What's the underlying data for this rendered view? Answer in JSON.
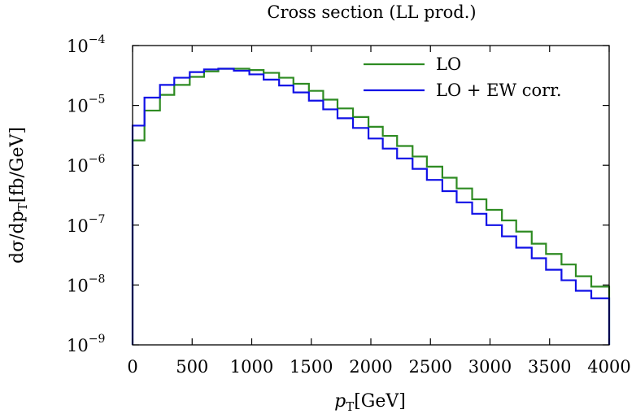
{
  "chart_data": {
    "type": "line",
    "title": "Cross section (LL prod.)",
    "xlabel": {
      "main": "p",
      "sub": "T",
      "unit": "[GeV]"
    },
    "ylabel": {
      "prefix": "dσ/dp",
      "sub": "T",
      "unit": "[fb/GeV]"
    },
    "xlim": [
      0,
      4000
    ],
    "ylim": [
      1e-09,
      0.0001
    ],
    "yscale": "log",
    "grid": false,
    "legend_position": "top-right",
    "x_ticks": [
      0,
      500,
      1000,
      1500,
      2000,
      2500,
      3000,
      3500,
      4000
    ],
    "x_tick_labels": [
      "0",
      "500",
      "1000",
      "1500",
      "2000",
      "2500",
      "3000",
      "3500",
      "4000"
    ],
    "y_ticks": [
      1e-09,
      1e-08,
      1e-07,
      1e-06,
      1e-05,
      0.0001
    ],
    "y_tick_labels": [
      {
        "base": "10",
        "exp": "−9"
      },
      {
        "base": "10",
        "exp": "−8"
      },
      {
        "base": "10",
        "exp": "−7"
      },
      {
        "base": "10",
        "exp": "−6"
      },
      {
        "base": "10",
        "exp": "−5"
      },
      {
        "base": "10",
        "exp": "−4"
      }
    ],
    "bin_edges": [
      0,
      100,
      230,
      350,
      480,
      600,
      720,
      850,
      980,
      1100,
      1230,
      1350,
      1480,
      1600,
      1720,
      1850,
      1980,
      2100,
      2220,
      2350,
      2470,
      2600,
      2720,
      2850,
      2970,
      3100,
      3220,
      3350,
      3470,
      3600,
      3720,
      3850,
      3970,
      4000
    ],
    "series": [
      {
        "name": "LO",
        "color": "#2e8b22",
        "values": [
          2.6e-06,
          8.2e-06,
          1.5e-05,
          2.2e-05,
          3e-05,
          3.7e-05,
          4.1e-05,
          4.1e-05,
          3.9e-05,
          3.5e-05,
          2.9e-05,
          2.3e-05,
          1.75e-05,
          1.25e-05,
          8.9e-06,
          6.4e-06,
          4.4e-06,
          3.1e-06,
          2.1e-06,
          1.4e-06,
          9.5e-07,
          6.2e-07,
          4.1e-07,
          2.7e-07,
          1.8e-07,
          1.2e-07,
          7.8e-08,
          4.9e-08,
          3.3e-08,
          2.2e-08,
          1.4e-08,
          9.4e-09,
          9.4e-09
        ]
      },
      {
        "name": "LO + EW corr.",
        "color": "#1010e6",
        "values": [
          4.6e-06,
          1.35e-05,
          2.2e-05,
          2.9e-05,
          3.6e-05,
          4e-05,
          4.1e-05,
          3.8e-05,
          3.3e-05,
          2.7e-05,
          2.15e-05,
          1.65e-05,
          1.2e-05,
          8.6e-06,
          6.1e-06,
          4.2e-06,
          2.8e-06,
          1.9e-06,
          1.3e-06,
          8.7e-07,
          5.7e-07,
          3.7e-07,
          2.4e-07,
          1.55e-07,
          1e-07,
          6.5e-08,
          4.2e-08,
          2.8e-08,
          1.8e-08,
          1.2e-08,
          8e-09,
          6e-09,
          6e-09
        ]
      }
    ]
  }
}
